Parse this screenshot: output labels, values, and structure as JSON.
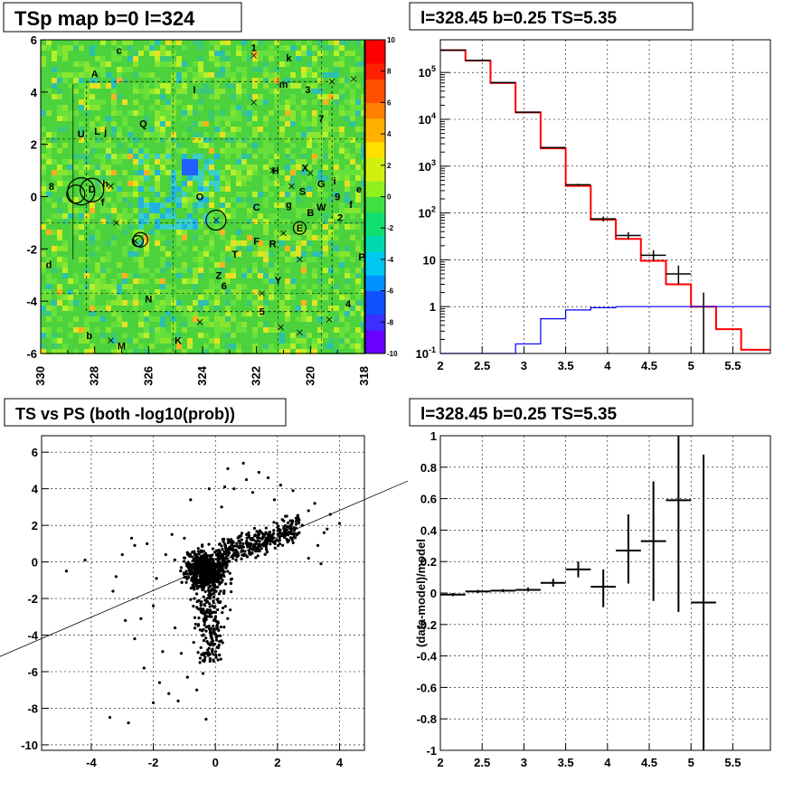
{
  "chart_data": [
    {
      "type": "heatmap",
      "title": "TSp map b=0 l=324",
      "x_ticks": [
        "330",
        "328",
        "326",
        "324",
        "322",
        "320",
        "318"
      ],
      "y_ticks": [
        "6",
        "4",
        "2",
        "0",
        "-2",
        "-4",
        "-6"
      ],
      "xlim": [
        330,
        318
      ],
      "ylim": [
        -6,
        6
      ],
      "colorbar_ticks": [
        "10",
        "8",
        "6",
        "4",
        "2",
        "0",
        "-2",
        "-4",
        "-6",
        "-8",
        "-10"
      ],
      "zlim": [
        -10,
        10
      ],
      "colors": {
        "background": "#4cd23c",
        "low": "#2d8cff",
        "high": "#ffb020"
      },
      "source_labels": [
        {
          "t": "c",
          "l": 327.1,
          "b": 5.6
        },
        {
          "t": "1",
          "l": 322.1,
          "b": 5.7
        },
        {
          "t": "k",
          "l": 320.8,
          "b": 5.3
        },
        {
          "t": "A",
          "l": 328.0,
          "b": 4.7
        },
        {
          "t": "m",
          "l": 321.0,
          "b": 4.3
        },
        {
          "t": "3",
          "l": 320.1,
          "b": 4.1
        },
        {
          "t": "I",
          "l": 324.3,
          "b": 4.1
        },
        {
          "t": "Q",
          "l": 326.2,
          "b": 2.8
        },
        {
          "t": "7",
          "l": 319.6,
          "b": 3.0
        },
        {
          "t": "U",
          "l": 328.5,
          "b": 2.4
        },
        {
          "t": "L",
          "l": 327.9,
          "b": 2.5
        },
        {
          "t": "j",
          "l": 327.6,
          "b": 2.5
        },
        {
          "t": "H",
          "l": 321.3,
          "b": 1.0
        },
        {
          "t": "X",
          "l": 320.2,
          "b": 1.1
        },
        {
          "t": "8",
          "l": 329.6,
          "b": 0.4
        },
        {
          "t": "D",
          "l": 328.1,
          "b": 0.3
        },
        {
          "t": "h",
          "l": 327.6,
          "b": 0.5
        },
        {
          "t": "S",
          "l": 320.3,
          "b": 0.2
        },
        {
          "t": "G",
          "l": 319.6,
          "b": 0.5
        },
        {
          "t": "i",
          "l": 319.1,
          "b": 0.6
        },
        {
          "t": "e",
          "l": 318.2,
          "b": 0.3
        },
        {
          "t": "9",
          "l": 319.0,
          "b": 0.0
        },
        {
          "t": "f",
          "l": 327.7,
          "b": -0.2
        },
        {
          "t": "O",
          "l": 324.1,
          "b": 0.0
        },
        {
          "t": "C",
          "l": 322.0,
          "b": -0.4
        },
        {
          "t": "g",
          "l": 320.8,
          "b": -0.3
        },
        {
          "t": "W",
          "l": 319.6,
          "b": -0.4
        },
        {
          "t": "B",
          "l": 320.0,
          "b": -0.6
        },
        {
          "t": "f",
          "l": 318.5,
          "b": -0.3
        },
        {
          "t": "2",
          "l": 318.9,
          "b": -0.8
        },
        {
          "t": "E",
          "l": 320.4,
          "b": -1.2
        },
        {
          "t": "F",
          "l": 322.0,
          "b": -1.7
        },
        {
          "t": "R",
          "l": 321.4,
          "b": -1.8
        },
        {
          "t": "T",
          "l": 322.8,
          "b": -2.2
        },
        {
          "t": "P",
          "l": 318.1,
          "b": -2.3
        },
        {
          "t": "d",
          "l": 329.7,
          "b": -2.6
        },
        {
          "t": "Z",
          "l": 323.4,
          "b": -3.0
        },
        {
          "t": "6",
          "l": 323.2,
          "b": -3.4
        },
        {
          "t": "Y",
          "l": 321.2,
          "b": -3.2
        },
        {
          "t": "N",
          "l": 326.0,
          "b": -3.9
        },
        {
          "t": "4",
          "l": 318.6,
          "b": -4.1
        },
        {
          "t": "5",
          "l": 321.8,
          "b": -4.4
        },
        {
          "t": "b",
          "l": 328.2,
          "b": -5.3
        },
        {
          "t": "M",
          "l": 327.0,
          "b": -5.7
        },
        {
          "t": "K",
          "l": 324.9,
          "b": -5.5
        }
      ]
    },
    {
      "type": "line",
      "title": "l=328.45 b=0.25 TS=5.35",
      "xlim": [
        2,
        5.95
      ],
      "ylim_log": [
        0.1,
        500000
      ],
      "x_ticks": [
        "2",
        "2.5",
        "3",
        "3.5",
        "4",
        "4.5",
        "5",
        "5.5"
      ],
      "y_ticks": [
        "10^{-1}",
        "1",
        "10",
        "10^{2}",
        "10^{3}",
        "10^{4}",
        "10^{5}"
      ],
      "series": [
        {
          "style": "step",
          "color": "#ff0000",
          "edges": [
            2,
            2.3,
            2.6,
            2.9,
            3.2,
            3.5,
            3.8,
            4.1,
            4.4,
            4.7,
            5.0,
            5.3,
            5.6,
            5.95
          ],
          "values": [
            300000,
            180000,
            60000,
            14000,
            2400,
            380,
            72,
            28,
            9.5,
            3.0,
            1.0,
            0.33,
            0.12
          ]
        },
        {
          "style": "step",
          "color": "#0000ff",
          "edges": [
            2,
            2.3,
            2.6,
            2.9,
            3.2,
            3.5,
            3.8,
            4.1,
            4.4,
            4.7,
            5.0,
            5.3,
            5.6,
            5.95
          ],
          "values": [
            0.05,
            0.05,
            0.05,
            0.16,
            0.55,
            0.85,
            0.95,
            1.0,
            1.0,
            1.0,
            1.0,
            1.0,
            1.0
          ]
        },
        {
          "style": "errorbar",
          "color": "#000000",
          "points": [
            {
              "x": 2.15,
              "y": 300000,
              "xerr": 0.15,
              "ylo": 300000,
              "yhi": 300000
            },
            {
              "x": 2.45,
              "y": 182000,
              "xerr": 0.15,
              "ylo": 182000,
              "yhi": 182000
            },
            {
              "x": 2.75,
              "y": 61000,
              "xerr": 0.15,
              "ylo": 61000,
              "yhi": 61000
            },
            {
              "x": 3.05,
              "y": 14200,
              "xerr": 0.15,
              "ylo": 14000,
              "yhi": 14400
            },
            {
              "x": 3.35,
              "y": 2500,
              "xerr": 0.15,
              "ylo": 2440,
              "yhi": 2560
            },
            {
              "x": 3.65,
              "y": 400,
              "xerr": 0.15,
              "ylo": 380,
              "yhi": 420
            },
            {
              "x": 3.95,
              "y": 75,
              "xerr": 0.15,
              "ylo": 66,
              "yhi": 84
            },
            {
              "x": 4.25,
              "y": 33,
              "xerr": 0.15,
              "ylo": 27,
              "yhi": 39
            },
            {
              "x": 4.55,
              "y": 12.5,
              "xerr": 0.15,
              "ylo": 9.5,
              "yhi": 16
            },
            {
              "x": 4.85,
              "y": 5,
              "xerr": 0.15,
              "ylo": 3,
              "yhi": 7.5
            },
            {
              "x": 5.15,
              "y": 1,
              "xerr": 0,
              "ylo": 0.1,
              "yhi": 2.0
            }
          ]
        }
      ]
    },
    {
      "type": "scatter",
      "title": "TS vs PS (both -log10(prob))",
      "xlim": [
        -5.6,
        4.8
      ],
      "ylim": [
        -10.3,
        6.9
      ],
      "x_ticks": [
        "-4",
        "-2",
        "0",
        "2",
        "4"
      ],
      "y_ticks": [
        "6",
        "4",
        "2",
        "0",
        "-2",
        "-4",
        "-6",
        "-8",
        "-10"
      ],
      "fit_line": {
        "slope": 0.73,
        "intercept": -0.1,
        "x_range": [
          -7.0,
          6.2
        ]
      },
      "points_outliers": [
        [
          -4.8,
          -0.5
        ],
        [
          -4.2,
          0.1
        ],
        [
          -3.4,
          -8.5
        ],
        [
          -2.8,
          -8.8
        ],
        [
          -2.6,
          -4.2
        ],
        [
          -2.3,
          -5.8
        ],
        [
          -2.0,
          -7.7
        ],
        [
          -1.8,
          -6.6
        ],
        [
          -1.5,
          -7.2
        ],
        [
          -1.2,
          -7.6
        ],
        [
          -0.9,
          -6.3
        ],
        [
          -0.6,
          -7.0
        ],
        [
          -0.4,
          -6.1
        ],
        [
          -2.9,
          -3.2
        ],
        [
          -1.7,
          -4.9
        ],
        [
          -1.1,
          -5.0
        ],
        [
          -3.3,
          -1.6
        ],
        [
          -2.0,
          -2.4
        ],
        [
          -1.9,
          -0.9
        ],
        [
          -2.7,
          1.3
        ],
        [
          -2.2,
          1.0
        ],
        [
          -1.6,
          0.4
        ],
        [
          -2.6,
          0.9
        ],
        [
          -1.4,
          1.5
        ],
        [
          -1.0,
          1.3
        ],
        [
          -3.2,
          -0.8
        ],
        [
          -3.0,
          0.4
        ],
        [
          -2.4,
          -3.1
        ],
        [
          0.6,
          4.0
        ],
        [
          1.0,
          4.5
        ],
        [
          1.4,
          4.9
        ],
        [
          0.9,
          5.4
        ],
        [
          1.7,
          4.6
        ],
        [
          2.1,
          4.2
        ],
        [
          2.5,
          3.9
        ],
        [
          2.7,
          2.3
        ],
        [
          3.0,
          2.8
        ],
        [
          3.2,
          3.2
        ],
        [
          3.5,
          1.6
        ],
        [
          3.6,
          1.8
        ],
        [
          3.7,
          2.6
        ],
        [
          3.3,
          0.9
        ],
        [
          3.0,
          0.2
        ],
        [
          4.0,
          2.1
        ],
        [
          3.4,
          -0.1
        ],
        [
          2.7,
          1.6
        ],
        [
          0.3,
          4.1
        ],
        [
          0.2,
          3.0
        ],
        [
          0.4,
          5.1
        ],
        [
          -0.2,
          4.0
        ],
        [
          2.8,
          2.0
        ],
        [
          1.9,
          3.4
        ],
        [
          2.3,
          2.5
        ],
        [
          -0.8,
          3.4
        ],
        [
          1.2,
          3.8
        ],
        [
          -0.3,
          -8.6
        ],
        [
          -0.7,
          -4.4
        ],
        [
          -1.3,
          -3.6
        ],
        [
          -0.5,
          -5.5
        ]
      ]
    },
    {
      "type": "scatter",
      "title": "l=328.45 b=0.25 TS=5.35",
      "ylabel": "(data-model)/model",
      "xlim": [
        2,
        5.95
      ],
      "ylim": [
        -1,
        1
      ],
      "x_ticks": [
        "2",
        "2.5",
        "3",
        "3.5",
        "4",
        "4.5",
        "5",
        "5.5"
      ],
      "y_ticks": [
        "1",
        "0.8",
        "0.6",
        "0.4",
        "0.2",
        "0",
        "-0.2",
        "-0.4",
        "-0.6",
        "-0.8",
        "-1"
      ],
      "points": [
        {
          "x": 2.15,
          "y": -0.01,
          "xerr": 0.15,
          "ylo": -0.02,
          "yhi": 0.0
        },
        {
          "x": 2.45,
          "y": 0.01,
          "xerr": 0.15,
          "ylo": 0.0,
          "yhi": 0.02
        },
        {
          "x": 2.75,
          "y": 0.015,
          "xerr": 0.15,
          "ylo": 0.005,
          "yhi": 0.025
        },
        {
          "x": 3.05,
          "y": 0.02,
          "xerr": 0.15,
          "ylo": 0.01,
          "yhi": 0.035
        },
        {
          "x": 3.35,
          "y": 0.065,
          "xerr": 0.15,
          "ylo": 0.04,
          "yhi": 0.09
        },
        {
          "x": 3.65,
          "y": 0.15,
          "xerr": 0.15,
          "ylo": 0.1,
          "yhi": 0.2
        },
        {
          "x": 3.95,
          "y": 0.04,
          "xerr": 0.15,
          "ylo": -0.09,
          "yhi": 0.15
        },
        {
          "x": 4.25,
          "y": 0.27,
          "xerr": 0.15,
          "ylo": 0.06,
          "yhi": 0.5
        },
        {
          "x": 4.55,
          "y": 0.33,
          "xerr": 0.15,
          "ylo": -0.05,
          "yhi": 0.71
        },
        {
          "x": 4.85,
          "y": 0.59,
          "xerr": 0.15,
          "ylo": -0.12,
          "yhi": 1.0
        },
        {
          "x": 5.15,
          "y": -0.06,
          "xerr": 0.15,
          "ylo": -1.0,
          "yhi": 0.88
        }
      ]
    }
  ]
}
